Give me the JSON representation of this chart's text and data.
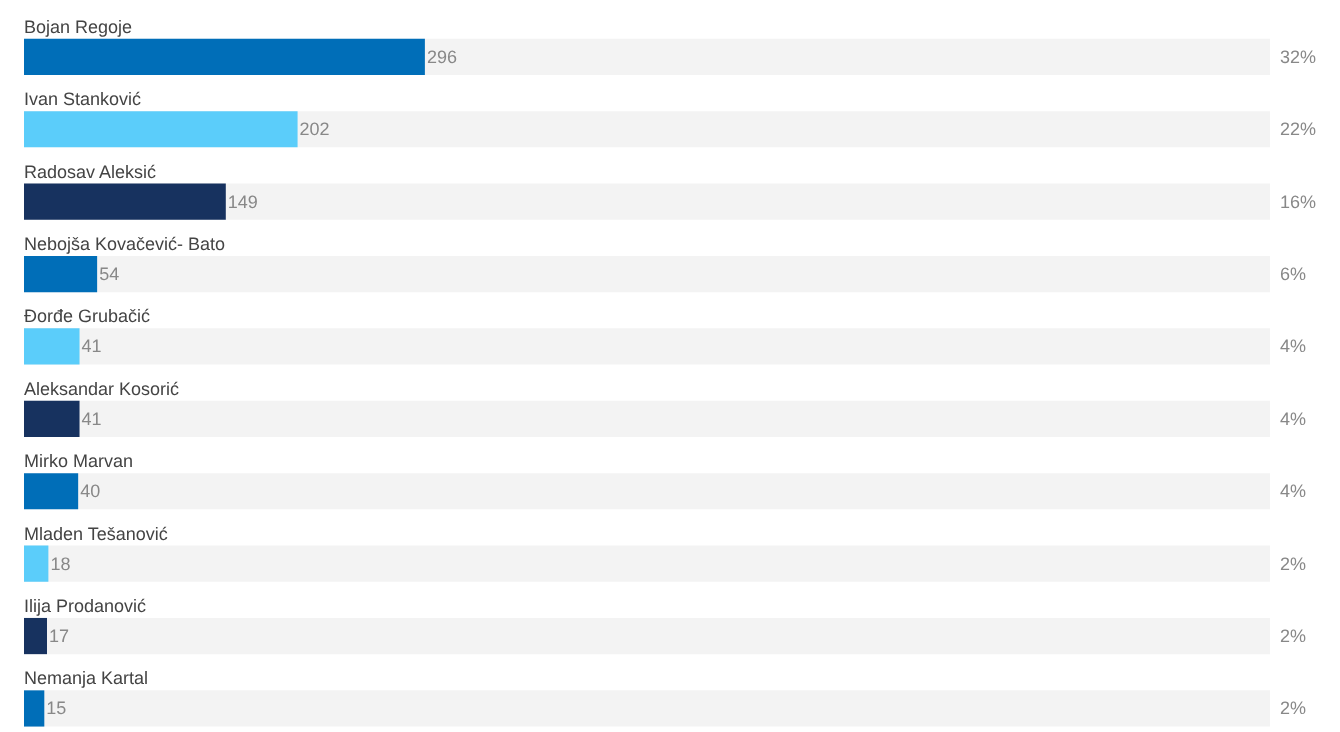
{
  "chart_data": {
    "type": "bar",
    "orientation": "horizontal",
    "categories": [
      "Bojan Regoje",
      "Ivan Stanković",
      "Radosav Aleksić",
      "Nebojša Kovačević- Bato",
      "Đorđe Grubačić",
      "Aleksandar Kosorić",
      "Mirko Marvan",
      "Mladen Tešanović",
      "Ilija Prodanović",
      "Nemanja Kartal"
    ],
    "values": [
      296,
      202,
      149,
      54,
      41,
      41,
      40,
      18,
      17,
      15
    ],
    "colors": [
      "#006eb8",
      "#5bcdfa",
      "#17325f",
      "#006eb8",
      "#5bcdfa",
      "#17325f",
      "#006eb8",
      "#5bcdfa",
      "#17325f",
      "#006eb8"
    ],
    "xlim": [
      0,
      920
    ],
    "data_labels": true,
    "annotations": [
      "32%",
      "22%",
      "16%",
      "6%",
      "4%",
      "4%",
      "4%",
      "2%",
      "2%",
      "2%"
    ]
  }
}
